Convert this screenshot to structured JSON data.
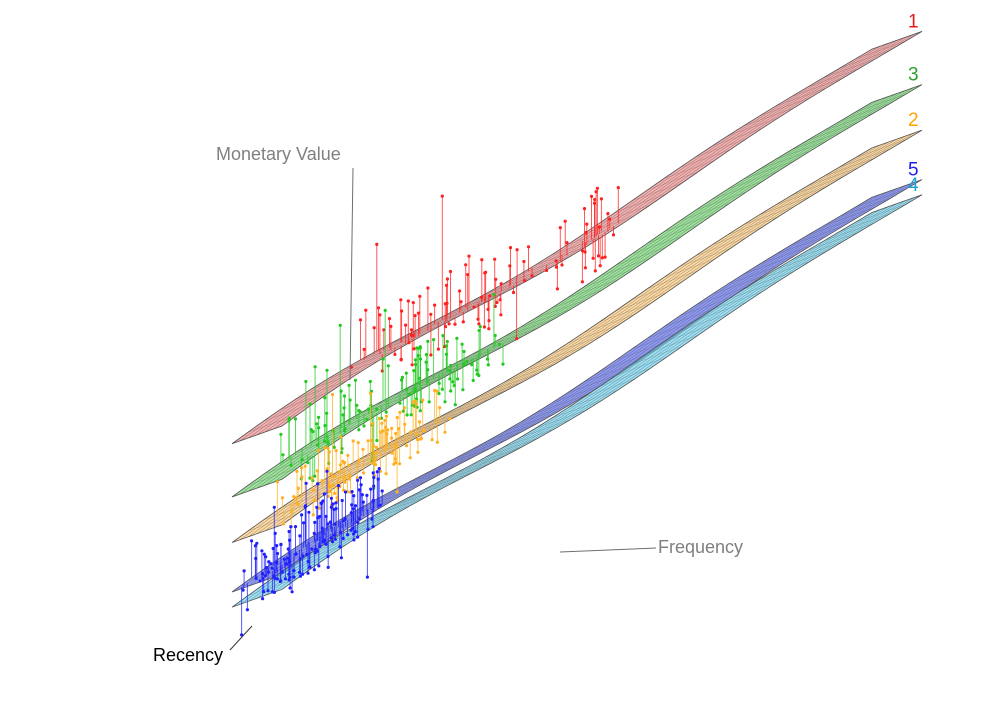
{
  "chart_data": {
    "type": "surface3d",
    "title": "",
    "axes": {
      "x": {
        "label": "Recency"
      },
      "y": {
        "label": "Frequency"
      },
      "z": {
        "label": "Monetary Value"
      }
    },
    "grid": false,
    "legend": "none",
    "surfaces": [
      {
        "name": "1",
        "color": "#e41a1c",
        "fill": "#f08080",
        "level": 1.0
      },
      {
        "name": "3",
        "color": "#2ca02c",
        "fill": "#5fd35f",
        "level": 0.72
      },
      {
        "name": "2",
        "color": "#ffa500",
        "fill": "#ffc46b",
        "level": 0.48
      },
      {
        "name": "5",
        "color": "#1f1fe6",
        "fill": "#4a5cf0",
        "level": 0.22
      },
      {
        "name": "4",
        "color": "#1ea0d0",
        "fill": "#5fd0f0",
        "level": 0.14
      }
    ],
    "scatter_groups": [
      {
        "cluster": "1",
        "color": "#ff2020"
      },
      {
        "cluster": "3",
        "color": "#22c922"
      },
      {
        "cluster": "2",
        "color": "#ffb020"
      },
      {
        "cluster": "5",
        "color": "#2020ff"
      }
    ]
  }
}
